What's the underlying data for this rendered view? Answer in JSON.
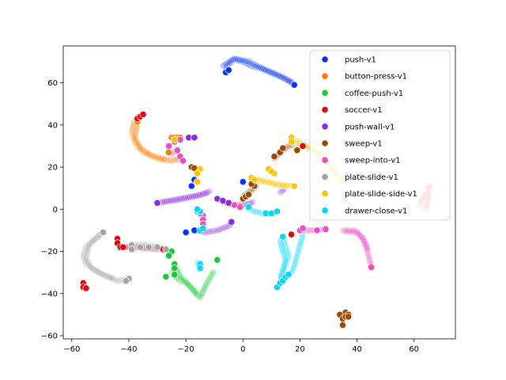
{
  "chart_data": {
    "type": "scatter",
    "title": "",
    "xlabel": "",
    "ylabel": "",
    "xlim": [
      -63,
      74.5
    ],
    "ylim": [
      -61.5,
      77.5
    ],
    "xticks": [
      -60,
      -40,
      -20,
      0,
      20,
      40,
      60
    ],
    "yticks": [
      -60,
      -40,
      -20,
      0,
      20,
      40,
      60
    ],
    "grid": false,
    "legend_position": "top-right",
    "series": [
      {
        "name": "push-v1",
        "color": "#0031ff",
        "trails": [
          [
            [
              -6,
              66
            ],
            [
              -5,
              69
            ],
            [
              -3,
              71
            ],
            [
              0,
              70
            ],
            [
              3,
              68
            ],
            [
              7,
              66.5
            ],
            [
              11,
              64.5
            ],
            [
              15,
              62
            ],
            [
              18,
              59
            ]
          ],
          [
            [
              -7,
              68
            ],
            [
              -3,
              71.5
            ],
            [
              2,
              70
            ],
            [
              8,
              66
            ],
            [
              13,
              63
            ],
            [
              17.5,
              60
            ]
          ]
        ],
        "solid": [
          [
            -6,
            65
          ],
          [
            -5,
            66
          ],
          [
            18,
            59
          ],
          [
            -18,
            11
          ],
          [
            -17,
            14
          ],
          [
            -20,
            -11
          ],
          [
            -17,
            -10
          ],
          [
            0,
            13
          ]
        ]
      },
      {
        "name": "button-press-v1",
        "color": "#ff7c00",
        "trails": [
          [
            [
              -38,
              42
            ],
            [
              -39,
              37
            ],
            [
              -38,
              32
            ],
            [
              -35,
              27
            ],
            [
              -30,
              24
            ],
            [
              -25,
              23
            ],
            [
              -22,
              24
            ]
          ],
          [
            [
              -37,
              40
            ],
            [
              -38,
              34
            ],
            [
              -36,
              29
            ],
            [
              -32,
              25.5
            ],
            [
              -27,
              23.5
            ]
          ]
        ],
        "solid": [
          [
            -37,
            41.5
          ],
          [
            -25,
            34
          ],
          [
            -24,
            34
          ],
          [
            -23,
            34
          ],
          [
            -22,
            34
          ],
          [
            -26,
            27
          ]
        ]
      },
      {
        "name": "coffee-push-v1",
        "color": "#1ac938",
        "trails": [
          [
            [
              -25,
              -30
            ],
            [
              -23,
              -33
            ],
            [
              -20,
              -35
            ],
            [
              -18,
              -37
            ],
            [
              -16,
              -40
            ],
            [
              -15,
              -42
            ],
            [
              -13,
              -36
            ],
            [
              -10,
              -29
            ]
          ],
          [
            [
              -24,
              -26
            ],
            [
              -22,
              -32
            ],
            [
              -19,
              -36
            ],
            [
              -16,
              -41
            ]
          ]
        ],
        "solid": [
          [
            -27,
            -32
          ],
          [
            -24,
            -26
          ],
          [
            -24,
            -28
          ],
          [
            -24,
            -31
          ],
          [
            -25,
            -20
          ],
          [
            -26,
            -22
          ],
          [
            -9,
            -24
          ]
        ]
      },
      {
        "name": "soccer-v1",
        "color": "#e8000b",
        "trails": [
          [
            [
              -36,
              44
            ],
            [
              -35,
              45
            ]
          ],
          [
            [
              -42,
              -18
            ],
            [
              -38,
              -18
            ],
            [
              -33,
              -18.5
            ],
            [
              -29,
              -19
            ]
          ],
          [
            [
              64,
              0
            ],
            [
              65,
              5
            ],
            [
              65,
              10
            ],
            [
              66,
              12
            ]
          ],
          [
            [
              62,
              2
            ],
            [
              64,
              8
            ]
          ]
        ],
        "solid": [
          [
            -37,
            43
          ],
          [
            -36,
            44
          ],
          [
            -35,
            45
          ],
          [
            -56,
            -35
          ],
          [
            -56,
            -37
          ],
          [
            -55,
            -37.5
          ],
          [
            -44,
            -14
          ],
          [
            -44,
            -16
          ],
          [
            -43,
            -18
          ],
          [
            -42,
            -18
          ],
          [
            -28,
            -19
          ],
          [
            -27,
            -19
          ],
          [
            17,
            -12
          ],
          [
            21,
            30
          ]
        ]
      },
      {
        "name": "push-wall-v1",
        "color": "#8b2be2",
        "trails": [
          [
            [
              -30,
              3
            ],
            [
              -24,
              4
            ],
            [
              -19,
              5.5
            ],
            [
              -14,
              7
            ],
            [
              -11,
              9
            ]
          ],
          [
            [
              -28,
              3.5
            ],
            [
              -22,
              5
            ],
            [
              -16,
              6.5
            ],
            [
              -12,
              8
            ]
          ],
          [
            [
              -17,
              -10
            ],
            [
              -13,
              -11
            ],
            [
              -9,
              -10
            ],
            [
              -5,
              -8
            ],
            [
              -4,
              -6
            ]
          ],
          [
            [
              -9,
              5
            ],
            [
              -6,
              3
            ],
            [
              -3,
              2
            ],
            [
              0,
              2
            ],
            [
              3,
              3
            ],
            [
              4,
              4
            ]
          ],
          [
            [
              13,
              8
            ],
            [
              15,
              10
            ]
          ]
        ],
        "solid": [
          [
            -30,
            3
          ],
          [
            -4,
            -6
          ],
          [
            -9,
            5
          ],
          [
            -7,
            4
          ],
          [
            -5,
            3
          ],
          [
            -19,
            34
          ],
          [
            -17,
            34
          ]
        ]
      },
      {
        "name": "sweep-v1",
        "color": "#9f4800",
        "trails": [
          [
            [
              0,
              6
            ],
            [
              2,
              8
            ],
            [
              4,
              10
            ],
            [
              5,
              12
            ]
          ],
          [
            [
              11,
              24
            ],
            [
              13,
              27
            ],
            [
              16,
              30
            ],
            [
              18,
              30.5
            ]
          ]
        ],
        "solid": [
          [
            -18,
            20
          ],
          [
            -17,
            19.5
          ],
          [
            0,
            5
          ],
          [
            1,
            6
          ],
          [
            2,
            7
          ],
          [
            4,
            11
          ],
          [
            3,
            12
          ],
          [
            11,
            25
          ],
          [
            13,
            27
          ],
          [
            14,
            29
          ],
          [
            19,
            28
          ],
          [
            34,
            -50
          ],
          [
            35,
            -52
          ],
          [
            35,
            -55
          ],
          [
            36,
            -49
          ],
          [
            37,
            -50
          ],
          [
            36,
            -51
          ],
          [
            37,
            -51
          ]
        ]
      },
      {
        "name": "sweep-into-v1",
        "color": "#f14cc1",
        "trails": [
          [
            [
              35,
              -10
            ],
            [
              39,
              -10
            ],
            [
              41,
              -12
            ],
            [
              43,
              -16
            ],
            [
              44,
              -22
            ],
            [
              45,
              -27
            ]
          ],
          [
            [
              36,
              -10.5
            ],
            [
              40,
              -11
            ],
            [
              42,
              -14
            ],
            [
              44,
              -20
            ]
          ],
          [
            [
              20,
              -10
            ],
            [
              23,
              -10
            ],
            [
              26,
              -10
            ],
            [
              29,
              -9.5
            ]
          ],
          [
            [
              -25,
              26
            ],
            [
              -24,
              28
            ]
          ]
        ],
        "solid": [
          [
            -26,
            30
          ],
          [
            -24,
            32
          ],
          [
            -22,
            33
          ],
          [
            -23,
            28
          ],
          [
            -22,
            25
          ],
          [
            -21,
            23
          ],
          [
            -14,
            -3
          ],
          [
            -14,
            -5
          ],
          [
            -14,
            -7
          ],
          [
            -14,
            -9
          ],
          [
            -15,
            -2
          ],
          [
            -3,
            2
          ],
          [
            -1,
            1
          ],
          [
            20,
            -10
          ],
          [
            21,
            -9
          ],
          [
            26,
            -10
          ],
          [
            29,
            -9.5
          ],
          [
            45,
            -27.5
          ]
        ]
      },
      {
        "name": "plate-slide-v1",
        "color": "#a3a3a3",
        "trails": [
          [
            [
              -49,
              -11
            ],
            [
              -52,
              -14
            ],
            [
              -55,
              -18
            ],
            [
              -56,
              -22
            ],
            [
              -55,
              -26
            ],
            [
              -52,
              -29
            ],
            [
              -48,
              -32
            ],
            [
              -44,
              -34
            ],
            [
              -40,
              -33
            ]
          ],
          [
            [
              -50,
              -12
            ],
            [
              -54,
              -17
            ],
            [
              -55,
              -24
            ],
            [
              -53,
              -28
            ],
            [
              -49,
              -31
            ],
            [
              -45,
              -33
            ]
          ],
          [
            [
              -38,
              -17
            ],
            [
              -34,
              -17
            ],
            [
              -30,
              -18
            ],
            [
              -26,
              -19
            ]
          ]
        ],
        "solid": [
          [
            -49,
            -11
          ],
          [
            -40,
            -33
          ],
          [
            -41,
            -34
          ],
          [
            -39,
            -17
          ],
          [
            -39,
            -19
          ],
          [
            -36,
            -18
          ],
          [
            -33,
            -18
          ],
          [
            -30,
            -18
          ],
          [
            -27,
            -19
          ]
        ]
      },
      {
        "name": "plate-slide-side-v1",
        "color": "#ffc400",
        "trails": [
          [
            [
              3,
              15
            ],
            [
              6,
              14
            ],
            [
              9,
              13
            ],
            [
              12,
              12
            ],
            [
              15,
              11.5
            ],
            [
              18,
              11
            ]
          ],
          [
            [
              18,
              33
            ],
            [
              21,
              31
            ],
            [
              25,
              28
            ],
            [
              28,
              24
            ],
            [
              31,
              20
            ],
            [
              34,
              15
            ],
            [
              35,
              12
            ]
          ],
          [
            [
              4,
              14
            ],
            [
              8,
              13
            ],
            [
              12,
              11.5
            ],
            [
              16,
              11
            ]
          ],
          [
            [
              19,
              31
            ],
            [
              24,
              29
            ],
            [
              29,
              23
            ],
            [
              33,
              16
            ]
          ]
        ],
        "solid": [
          [
            -15,
            19
          ],
          [
            -16,
            17
          ],
          [
            3,
            15
          ],
          [
            4,
            14
          ],
          [
            9,
            19
          ],
          [
            11,
            17
          ],
          [
            10,
            18
          ],
          [
            17,
            34
          ],
          [
            17,
            32
          ],
          [
            18,
            11
          ],
          [
            -24,
            33
          ],
          [
            -16,
            13
          ]
        ]
      },
      {
        "name": "drawer-close-v1",
        "color": "#00d7ff",
        "trails": [
          [
            [
              14,
              -13
            ],
            [
              15,
              -18
            ],
            [
              16,
              -22
            ],
            [
              15,
              -26
            ],
            [
              14,
              -30
            ],
            [
              13,
              -35
            ],
            [
              12,
              -37
            ]
          ],
          [
            [
              21,
              -12
            ],
            [
              20,
              -17
            ],
            [
              19,
              -22
            ],
            [
              18,
              -27
            ],
            [
              17,
              -30
            ],
            [
              15,
              -32
            ]
          ],
          [
            [
              13,
              -15
            ],
            [
              14,
              -20
            ],
            [
              15,
              -24
            ],
            [
              14,
              -29
            ],
            [
              13,
              -33
            ]
          ],
          [
            [
              1,
              1
            ],
            [
              4,
              -1
            ],
            [
              7,
              -2
            ],
            [
              10,
              -2
            ],
            [
              12,
              -1
            ]
          ],
          [
            [
              -16,
              -25
            ],
            [
              -15,
              -29
            ]
          ]
        ],
        "solid": [
          [
            14,
            -13
          ],
          [
            12,
            -37
          ],
          [
            13,
            -35
          ],
          [
            14,
            -34
          ],
          [
            15,
            -32
          ],
          [
            16,
            -31
          ],
          [
            -16,
            -1
          ],
          [
            -15,
            -1
          ],
          [
            -16,
            0
          ],
          [
            -15,
            -10
          ],
          [
            -14,
            -9
          ],
          [
            -15,
            -26
          ],
          [
            -15,
            -28
          ],
          [
            2,
            1
          ],
          [
            8,
            -2
          ],
          [
            10,
            -2
          ],
          [
            12,
            -1
          ]
        ]
      }
    ]
  }
}
